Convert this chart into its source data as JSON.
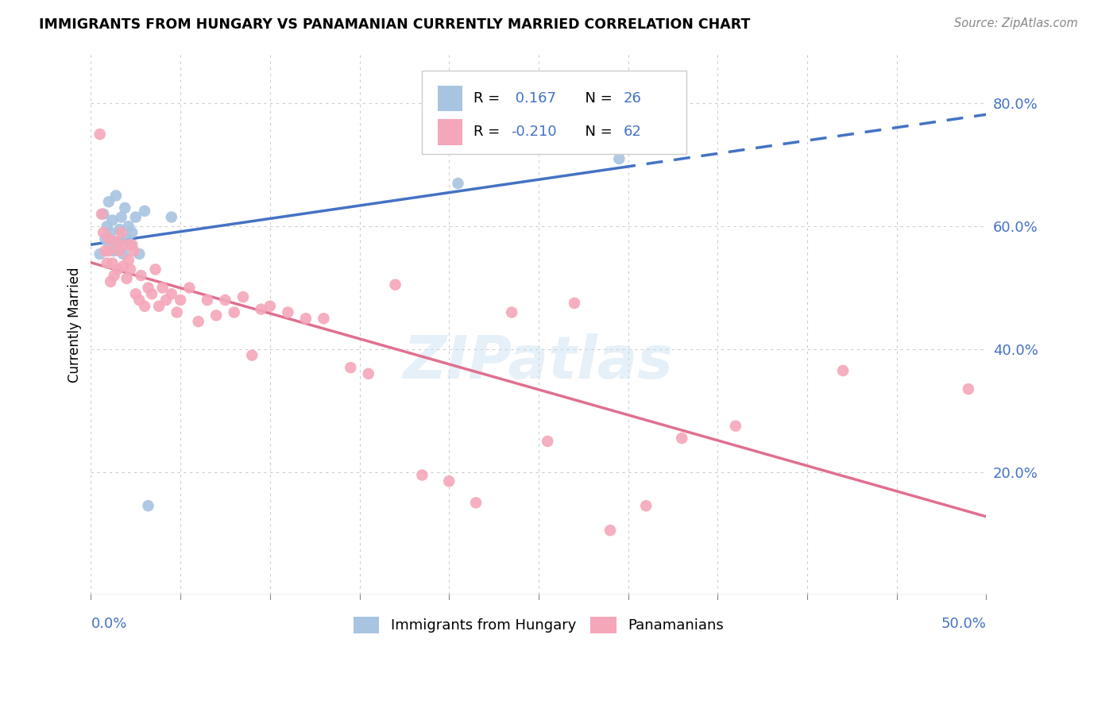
{
  "title": "IMMIGRANTS FROM HUNGARY VS PANAMANIAN CURRENTLY MARRIED CORRELATION CHART",
  "source": "Source: ZipAtlas.com",
  "ylabel": "Currently Married",
  "right_yticks": [
    "80.0%",
    "60.0%",
    "40.0%",
    "20.0%"
  ],
  "right_ytick_vals": [
    0.8,
    0.6,
    0.4,
    0.2
  ],
  "xlim": [
    0.0,
    0.5
  ],
  "ylim": [
    0.0,
    0.88
  ],
  "blue_color": "#a8c4e0",
  "pink_color": "#f4a7b9",
  "line_blue": "#4472c4",
  "line_pink": "#e07090",
  "watermark": "ZIPatlas",
  "hungary_x": [
    0.005,
    0.007,
    0.008,
    0.009,
    0.01,
    0.01,
    0.011,
    0.012,
    0.013,
    0.014,
    0.015,
    0.016,
    0.017,
    0.018,
    0.019,
    0.02,
    0.021,
    0.022,
    0.023,
    0.025,
    0.027,
    0.03,
    0.032,
    0.045,
    0.205,
    0.295
  ],
  "hungary_y": [
    0.555,
    0.62,
    0.58,
    0.6,
    0.64,
    0.57,
    0.59,
    0.61,
    0.56,
    0.65,
    0.575,
    0.595,
    0.615,
    0.555,
    0.63,
    0.58,
    0.6,
    0.57,
    0.59,
    0.615,
    0.555,
    0.625,
    0.145,
    0.615,
    0.67,
    0.71
  ],
  "panama_x": [
    0.005,
    0.006,
    0.007,
    0.008,
    0.009,
    0.01,
    0.01,
    0.011,
    0.012,
    0.013,
    0.014,
    0.015,
    0.016,
    0.017,
    0.018,
    0.019,
    0.02,
    0.021,
    0.022,
    0.023,
    0.024,
    0.025,
    0.027,
    0.028,
    0.03,
    0.032,
    0.034,
    0.036,
    0.038,
    0.04,
    0.042,
    0.045,
    0.048,
    0.05,
    0.055,
    0.06,
    0.065,
    0.07,
    0.075,
    0.08,
    0.085,
    0.09,
    0.095,
    0.1,
    0.11,
    0.12,
    0.13,
    0.145,
    0.155,
    0.17,
    0.185,
    0.2,
    0.215,
    0.235,
    0.255,
    0.27,
    0.29,
    0.31,
    0.33,
    0.36,
    0.42,
    0.49
  ],
  "panama_y": [
    0.75,
    0.62,
    0.59,
    0.56,
    0.54,
    0.58,
    0.56,
    0.51,
    0.54,
    0.52,
    0.575,
    0.53,
    0.56,
    0.59,
    0.535,
    0.57,
    0.515,
    0.545,
    0.53,
    0.57,
    0.56,
    0.49,
    0.48,
    0.52,
    0.47,
    0.5,
    0.49,
    0.53,
    0.47,
    0.5,
    0.48,
    0.49,
    0.46,
    0.48,
    0.5,
    0.445,
    0.48,
    0.455,
    0.48,
    0.46,
    0.485,
    0.39,
    0.465,
    0.47,
    0.46,
    0.45,
    0.45,
    0.37,
    0.36,
    0.505,
    0.195,
    0.185,
    0.15,
    0.46,
    0.25,
    0.475,
    0.105,
    0.145,
    0.255,
    0.275,
    0.365,
    0.335
  ]
}
